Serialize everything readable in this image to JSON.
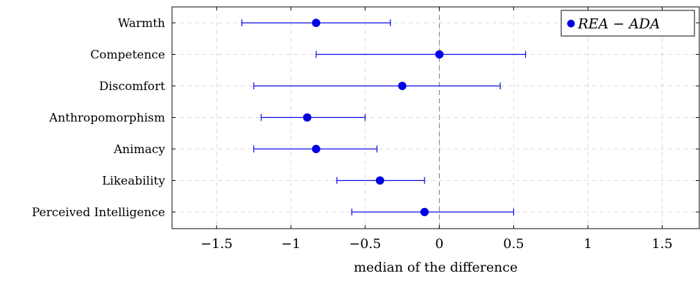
{
  "chart_data": {
    "type": "scatter",
    "subtype": "dot-with-error-bars",
    "title": "",
    "xlabel": "median of the difference",
    "ylabel": "",
    "xlim": [
      -1.8,
      1.75
    ],
    "x_ticks": [
      -1.5,
      -1,
      -0.5,
      0,
      0.5,
      1,
      1.5
    ],
    "x_tick_labels": [
      "−1.5",
      "−1",
      "−0.5",
      "0",
      "0.5",
      "1",
      "1.5"
    ],
    "grid": true,
    "reference_line_x": 0,
    "legend_position": "top-right",
    "series": [
      {
        "name": "REA − ADA",
        "color": "#0000e6",
        "categories": [
          "Warmth",
          "Competence",
          "Discomfort",
          "Anthropomorphism",
          "Animacy",
          "Likeability",
          "Perceived Intelligence"
        ],
        "values": [
          -0.83,
          0.0,
          -0.25,
          -0.89,
          -0.83,
          -0.4,
          -0.1
        ],
        "lower": [
          -1.33,
          -0.83,
          -1.25,
          -1.2,
          -1.25,
          -0.69,
          -0.59
        ],
        "upper": [
          -0.33,
          0.58,
          0.41,
          -0.5,
          -0.42,
          -0.1,
          0.5
        ]
      }
    ]
  }
}
